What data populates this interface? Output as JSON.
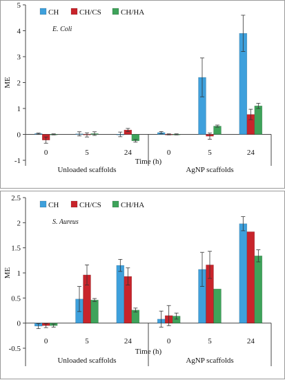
{
  "chart_data": [
    {
      "type": "bar",
      "annotation": "E. Coli",
      "ylabel": "ME",
      "ylim": [
        -1,
        5
      ],
      "yticks": [
        -1,
        0,
        1,
        2,
        3,
        4,
        5
      ],
      "grid": false,
      "legend_position": "top-left",
      "series": [
        {
          "name": "CH",
          "color": "#3ea0dc",
          "values": [
            0.03,
            0.02,
            0.0,
            0.07,
            2.2,
            3.9
          ],
          "errors": [
            0.02,
            0.08,
            0.09,
            0.04,
            0.75,
            0.7
          ]
        },
        {
          "name": "CH/CS",
          "color": "#c8242b",
          "values": [
            -0.22,
            -0.02,
            0.17,
            0.0,
            -0.07,
            0.77
          ],
          "errors": [
            0.12,
            0.08,
            0.06,
            0.02,
            0.12,
            0.2
          ]
        },
        {
          "name": "CH/HA",
          "color": "#3ea35a",
          "values": [
            0.0,
            0.03,
            -0.25,
            0.0,
            0.32,
            1.1
          ],
          "errors": [
            0.02,
            0.07,
            0.05,
            0.02,
            0.04,
            0.1
          ]
        }
      ],
      "time_labels": [
        "0",
        "5",
        "24",
        "0",
        "5",
        "24"
      ],
      "xlabel": "Time (h)",
      "groups": [
        "Unloaded scaffolds",
        "AgNP scaffolds"
      ]
    },
    {
      "type": "bar",
      "annotation": "S. Aureus",
      "ylabel": "ME",
      "ylim": [
        -0.5,
        2.5
      ],
      "yticks": [
        -0.5,
        0,
        0.5,
        1,
        1.5,
        2,
        2.5
      ],
      "grid": false,
      "legend_position": "top-left",
      "series": [
        {
          "name": "CH",
          "color": "#3ea0dc",
          "values": [
            -0.06,
            0.48,
            1.15,
            0.08,
            1.07,
            1.98
          ],
          "errors": [
            0.05,
            0.25,
            0.12,
            0.16,
            0.34,
            0.14
          ]
        },
        {
          "name": "CH/CS",
          "color": "#c8242b",
          "values": [
            -0.05,
            0.96,
            0.93,
            0.15,
            1.16,
            1.82
          ],
          "errors": [
            0.04,
            0.2,
            0.17,
            0.2,
            0.27,
            0.0
          ]
        },
        {
          "name": "CH/HA",
          "color": "#3ea35a",
          "values": [
            -0.05,
            0.46,
            0.26,
            0.14,
            0.68,
            1.34
          ],
          "errors": [
            0.03,
            0.03,
            0.04,
            0.06,
            0.0,
            0.12
          ]
        }
      ],
      "time_labels": [
        "0",
        "5",
        "24",
        "0",
        "5",
        "24"
      ],
      "xlabel": "Time (h)",
      "groups": [
        "Unloaded scaffolds",
        "AgNP scaffolds"
      ]
    }
  ]
}
